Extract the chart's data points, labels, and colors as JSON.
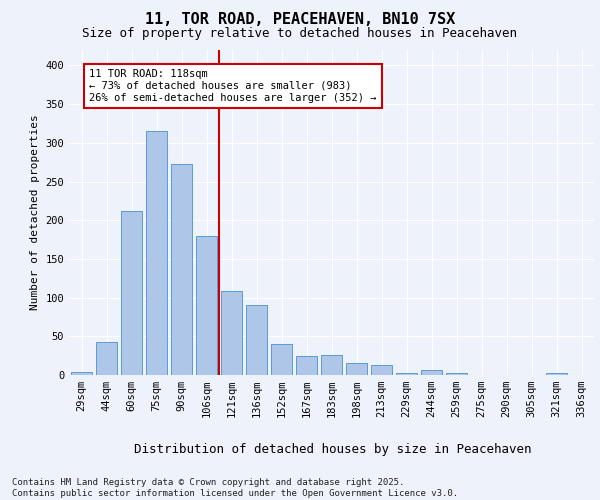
{
  "title1": "11, TOR ROAD, PEACEHAVEN, BN10 7SX",
  "title2": "Size of property relative to detached houses in Peacehaven",
  "xlabel": "Distribution of detached houses by size in Peacehaven",
  "ylabel": "Number of detached properties",
  "categories": [
    "29sqm",
    "44sqm",
    "60sqm",
    "75sqm",
    "90sqm",
    "106sqm",
    "121sqm",
    "136sqm",
    "152sqm",
    "167sqm",
    "183sqm",
    "198sqm",
    "213sqm",
    "229sqm",
    "244sqm",
    "259sqm",
    "275sqm",
    "290sqm",
    "305sqm",
    "321sqm",
    "336sqm"
  ],
  "values": [
    4,
    43,
    212,
    315,
    273,
    180,
    109,
    91,
    40,
    25,
    26,
    15,
    13,
    3,
    6,
    3,
    0,
    0,
    0,
    3,
    0
  ],
  "bar_color": "#aec6e8",
  "bar_edge_color": "#5b9bd5",
  "annotation_text": "11 TOR ROAD: 118sqm\n← 73% of detached houses are smaller (983)\n26% of semi-detached houses are larger (352) →",
  "annotation_box_color": "#ffffff",
  "annotation_box_edge_color": "#cc0000",
  "vline_color": "#cc0000",
  "vline_x_index": 5.5,
  "ylim": [
    0,
    420
  ],
  "yticks": [
    0,
    50,
    100,
    150,
    200,
    250,
    300,
    350,
    400
  ],
  "background_color": "#eef2fb",
  "grid_color": "#ffffff",
  "footnote": "Contains HM Land Registry data © Crown copyright and database right 2025.\nContains public sector information licensed under the Open Government Licence v3.0.",
  "title1_fontsize": 11,
  "title2_fontsize": 9,
  "xlabel_fontsize": 9,
  "ylabel_fontsize": 8,
  "tick_fontsize": 7.5,
  "annotation_fontsize": 7.5,
  "footnote_fontsize": 6.5
}
